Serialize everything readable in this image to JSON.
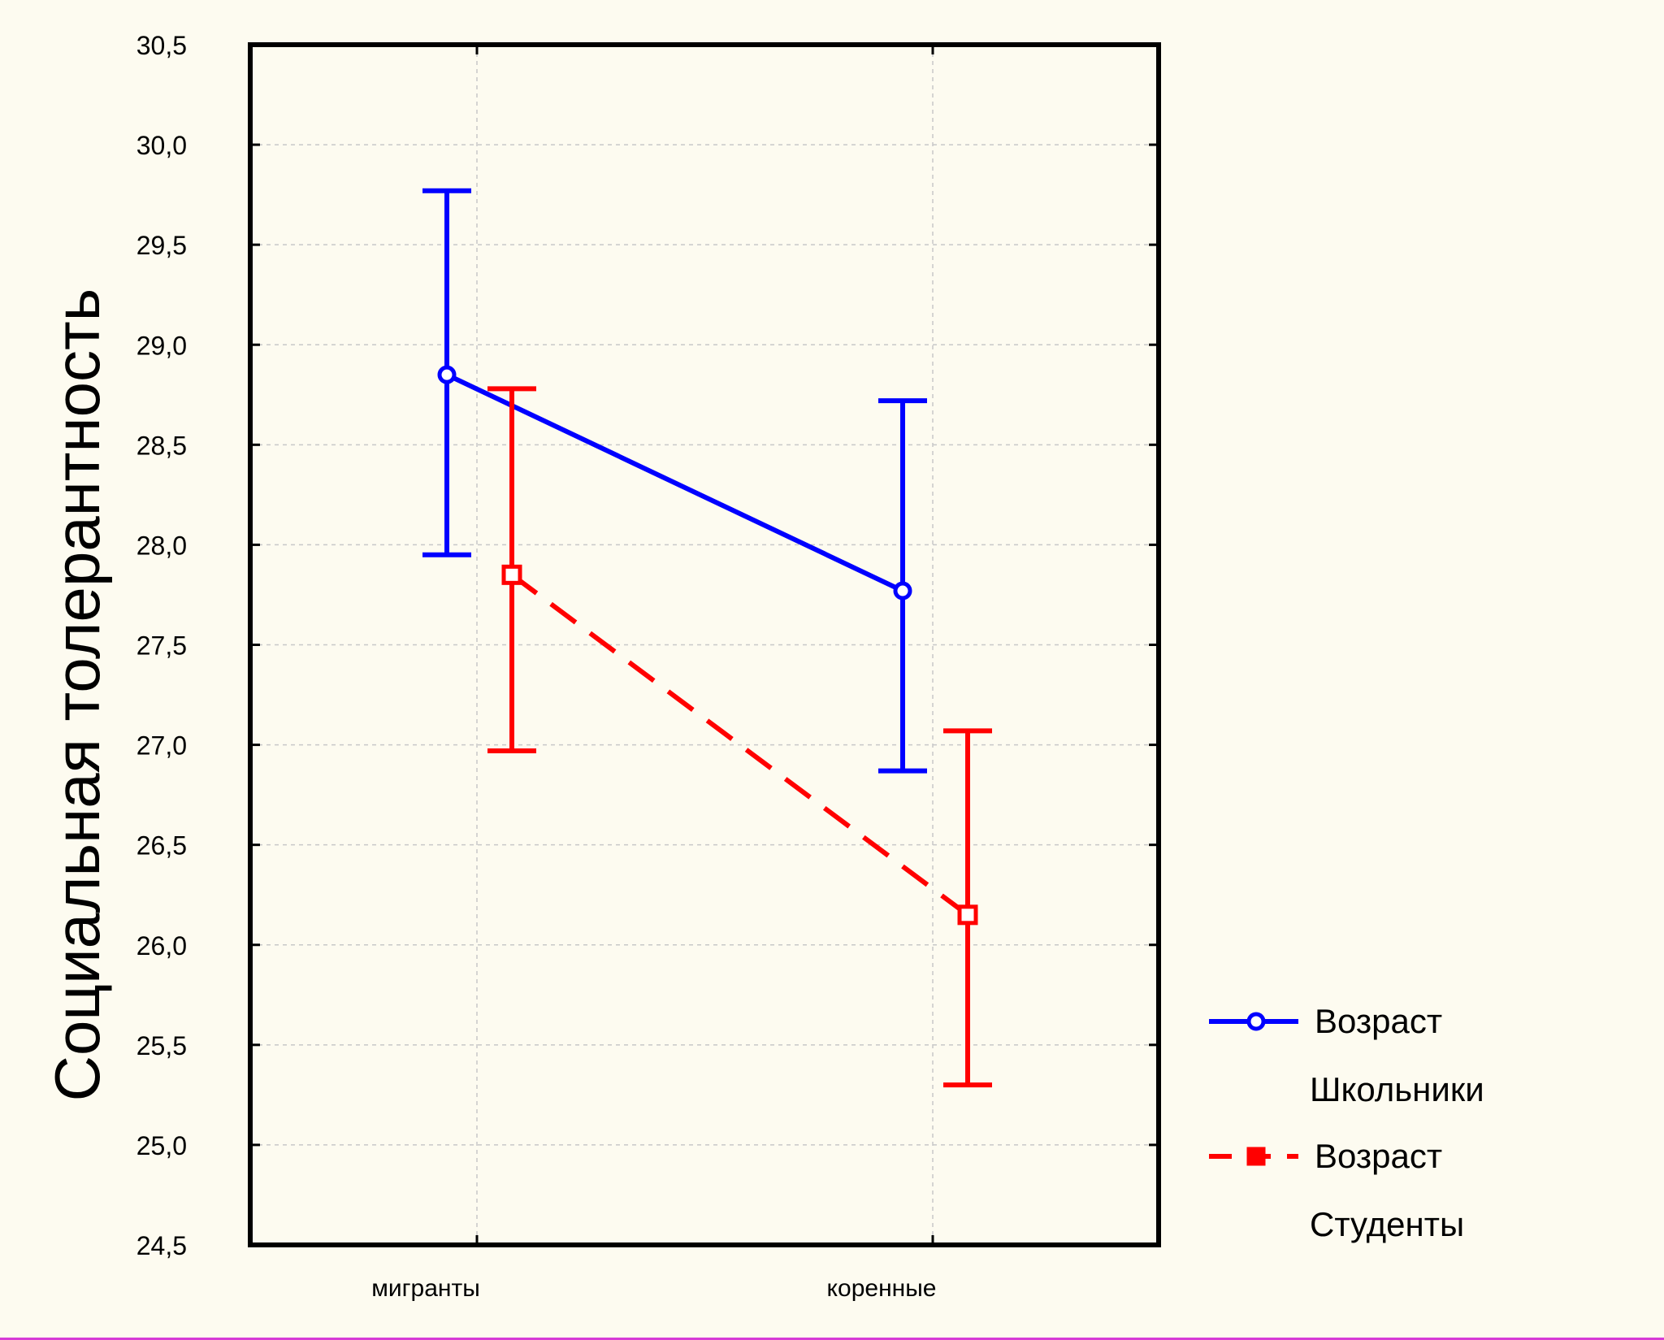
{
  "colors": {
    "background": "#fdfbf0",
    "series_blue": "#0000ff",
    "series_red": "#ff0000",
    "axis": "#000000",
    "grid": "#c8c8c8"
  },
  "chart_data": {
    "type": "line",
    "title": "",
    "xlabel": "",
    "ylabel": "Социальная толерантность",
    "categories": [
      "мигранты",
      "коренные"
    ],
    "ylim": [
      24.5,
      30.5
    ],
    "yticks": [
      "24,5",
      "25,0",
      "25,5",
      "26,0",
      "26,5",
      "27,0",
      "27,5",
      "28,0",
      "28,5",
      "29,0",
      "29,5",
      "30,0",
      "30,5"
    ],
    "grid": true,
    "legend_position": "right-bottom",
    "series": [
      {
        "name": "Возраст",
        "group": "Школьники",
        "color": "#0000ff",
        "line": "solid",
        "marker": "circle",
        "values": [
          28.85,
          27.77
        ],
        "error_low": [
          27.95,
          26.87
        ],
        "error_high": [
          29.77,
          28.72
        ]
      },
      {
        "name": "Возраст",
        "group": "Студенты",
        "color": "#ff0000",
        "line": "dashed",
        "marker": "square",
        "values": [
          27.85,
          26.15
        ],
        "error_low": [
          26.97,
          25.3
        ],
        "error_high": [
          28.78,
          27.07
        ]
      }
    ]
  }
}
